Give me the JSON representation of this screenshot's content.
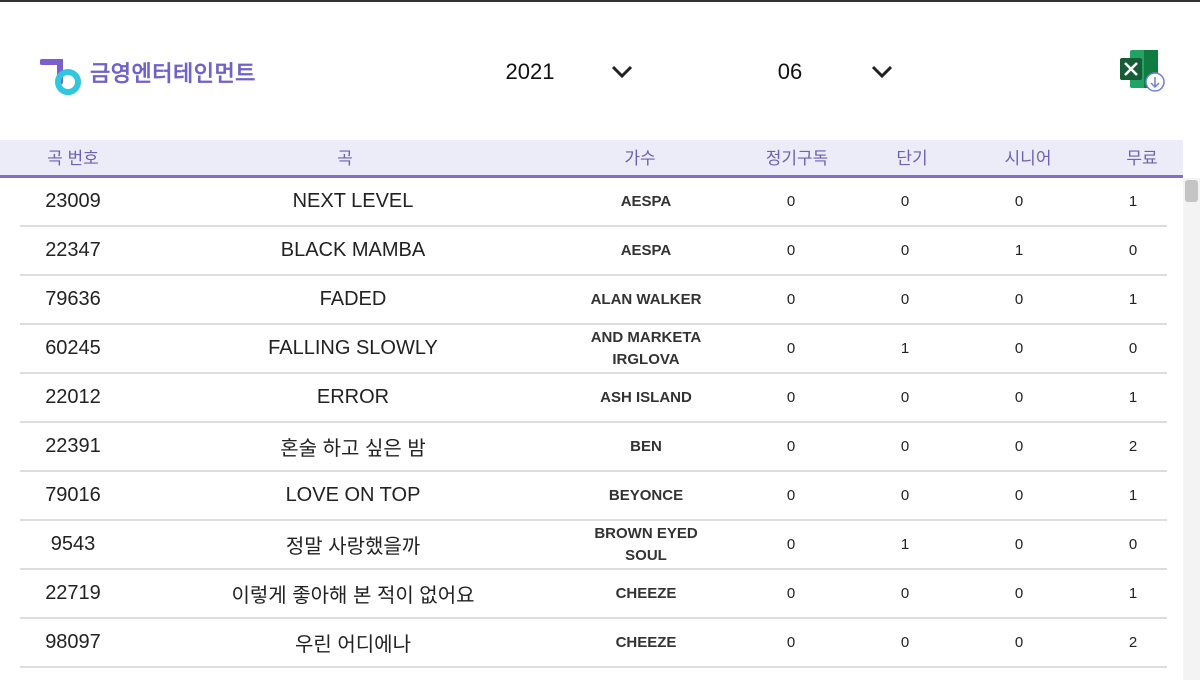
{
  "header": {
    "logo_text": "금영엔터테인먼트",
    "year": "2021",
    "month": "06"
  },
  "table": {
    "columns": [
      "곡 번호",
      "곡",
      "가수",
      "정기구독",
      "단기",
      "시니어",
      "무료"
    ],
    "rows": [
      [
        "23009",
        "NEXT LEVEL",
        "AESPA",
        0,
        0,
        0,
        1
      ],
      [
        "22347",
        "BLACK MAMBA",
        "AESPA",
        0,
        0,
        1,
        0
      ],
      [
        "79636",
        "FADED",
        "ALAN WALKER",
        0,
        0,
        0,
        1
      ],
      [
        "60245",
        "FALLING SLOWLY",
        "AND MARKETA IRGLOVA",
        0,
        1,
        0,
        0
      ],
      [
        "22012",
        "ERROR",
        "ASH ISLAND",
        0,
        0,
        0,
        1
      ],
      [
        "22391",
        "혼술 하고 싶은 밤",
        "BEN",
        0,
        0,
        0,
        2
      ],
      [
        "79016",
        "LOVE ON TOP",
        "BEYONCE",
        0,
        0,
        0,
        1
      ],
      [
        "9543",
        "정말 사랑했을까",
        "BROWN EYED SOUL",
        0,
        1,
        0,
        0
      ],
      [
        "22719",
        "이렇게 좋아해 본 적이 없어요",
        "CHEEZE",
        0,
        0,
        0,
        1
      ],
      [
        "98097",
        "우린 어디에나",
        "CHEEZE",
        0,
        0,
        0,
        2
      ]
    ]
  }
}
